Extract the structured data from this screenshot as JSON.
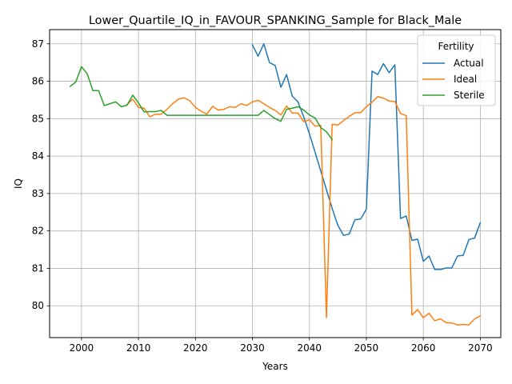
{
  "chart_data": {
    "type": "line",
    "title": "Lower_Quartile_IQ_in_FAVOUR_SPANKING_Sample for Black_Male",
    "xlabel": "Years",
    "ylabel": "IQ",
    "xlim": [
      1994.4,
      2073.6
    ],
    "ylim": [
      79.15,
      87.38
    ],
    "xticks": [
      2000,
      2010,
      2020,
      2030,
      2040,
      2050,
      2060,
      2070
    ],
    "yticks": [
      80,
      81,
      82,
      83,
      84,
      85,
      86,
      87
    ],
    "grid": true,
    "legend": {
      "title": "Fertility",
      "placement": "top-right",
      "entries": [
        "Actual",
        "Ideal",
        "Sterile"
      ]
    },
    "series": [
      {
        "name": "Actual",
        "color": "#1f77b4",
        "x": [
          2030,
          2031,
          2032,
          2033,
          2034,
          2035,
          2036,
          2037,
          2038,
          2039,
          2040,
          2041,
          2042,
          2043,
          2044,
          2045,
          2046,
          2047,
          2048,
          2049,
          2050,
          2051,
          2052,
          2053,
          2054,
          2055,
          2056,
          2057,
          2058,
          2059,
          2060,
          2061,
          2062,
          2063,
          2064,
          2065,
          2066,
          2067,
          2068,
          2069,
          2070
        ],
        "y": [
          86.97,
          86.67,
          87.0,
          86.5,
          86.42,
          85.84,
          86.18,
          85.6,
          85.45,
          85.05,
          84.6,
          84.1,
          83.6,
          83.1,
          82.6,
          82.15,
          81.88,
          81.92,
          82.3,
          82.32,
          82.58,
          86.27,
          86.18,
          86.47,
          86.23,
          86.44,
          82.33,
          82.4,
          81.75,
          81.78,
          81.19,
          81.33,
          80.97,
          80.97,
          81.01,
          81.01,
          81.33,
          81.35,
          81.77,
          81.81,
          82.22
        ]
      },
      {
        "name": "Ideal",
        "color": "#ff7f0e",
        "x": [
          2008,
          2009,
          2010,
          2011,
          2012,
          2013,
          2014,
          2015,
          2016,
          2017,
          2018,
          2019,
          2020,
          2021,
          2022,
          2023,
          2024,
          2025,
          2026,
          2027,
          2028,
          2029,
          2030,
          2031,
          2032,
          2033,
          2034,
          2035,
          2036,
          2037,
          2038,
          2039,
          2040,
          2041,
          2042,
          2043,
          2044,
          2045,
          2046,
          2047,
          2048,
          2049,
          2050,
          2051,
          2052,
          2053,
          2054,
          2055,
          2056,
          2057,
          2058,
          2059,
          2060,
          2061,
          2062,
          2063,
          2064,
          2065,
          2066,
          2067,
          2068,
          2069,
          2070
        ],
        "y": [
          85.38,
          85.52,
          85.3,
          85.28,
          85.05,
          85.12,
          85.12,
          85.25,
          85.4,
          85.52,
          85.56,
          85.48,
          85.3,
          85.2,
          85.12,
          85.33,
          85.23,
          85.25,
          85.32,
          85.3,
          85.4,
          85.35,
          85.45,
          85.49,
          85.4,
          85.3,
          85.22,
          85.1,
          85.34,
          85.15,
          85.15,
          84.92,
          84.97,
          84.8,
          84.82,
          79.68,
          84.85,
          84.83,
          84.95,
          85.06,
          85.16,
          85.16,
          85.32,
          85.44,
          85.59,
          85.55,
          85.47,
          85.46,
          85.14,
          85.08,
          79.75,
          79.9,
          79.68,
          79.8,
          79.6,
          79.65,
          79.55,
          79.54,
          79.49,
          79.5,
          79.49,
          79.65,
          79.73
        ]
      },
      {
        "name": "Sterile",
        "color": "#2ca02c",
        "x": [
          1998,
          1999,
          2000,
          2001,
          2002,
          2003,
          2004,
          2005,
          2006,
          2007,
          2008,
          2009,
          2010,
          2011,
          2012,
          2013,
          2014,
          2015,
          2016,
          2017,
          2018,
          2019,
          2020,
          2021,
          2022,
          2023,
          2024,
          2025,
          2026,
          2027,
          2028,
          2029,
          2030,
          2031,
          2032,
          2033,
          2034,
          2035,
          2036,
          2037,
          2038,
          2039,
          2040,
          2041,
          2042,
          2043,
          2044
        ],
        "y": [
          85.86,
          85.98,
          86.39,
          86.2,
          85.75,
          85.75,
          85.35,
          85.4,
          85.45,
          85.32,
          85.36,
          85.63,
          85.42,
          85.18,
          85.19,
          85.19,
          85.22,
          85.09,
          85.09,
          85.09,
          85.09,
          85.09,
          85.09,
          85.09,
          85.09,
          85.09,
          85.09,
          85.09,
          85.09,
          85.09,
          85.09,
          85.09,
          85.09,
          85.09,
          85.22,
          85.11,
          85.0,
          84.93,
          85.25,
          85.28,
          85.32,
          85.23,
          85.1,
          85.02,
          84.76,
          84.65,
          84.44
        ]
      }
    ]
  }
}
